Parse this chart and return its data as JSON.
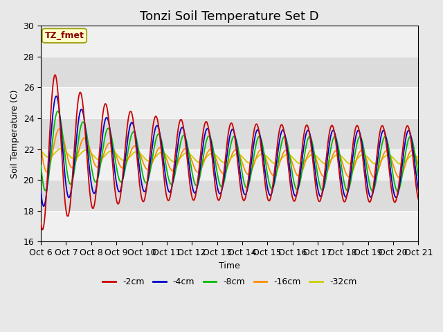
{
  "title": "Tonzi Soil Temperature Set D",
  "xlabel": "Time",
  "ylabel": "Soil Temperature (C)",
  "ylim": [
    16,
    30
  ],
  "xlim": [
    0,
    15
  ],
  "xtick_labels": [
    "Oct 6",
    "Oct 7",
    "Oct 8",
    "Oct 9",
    "Oct 10",
    "Oct 11",
    "Oct 12",
    "Oct 13",
    "Oct 14",
    "Oct 15",
    "Oct 16",
    "Oct 17",
    "Oct 18",
    "Oct 19",
    "Oct 20",
    "Oct 21"
  ],
  "series_colors": [
    "#cc0000",
    "#0000cc",
    "#00bb00",
    "#ff8c00",
    "#cccc00"
  ],
  "series_names": [
    "-2cm",
    "-4cm",
    "-8cm",
    "-16cm",
    "-32cm"
  ],
  "plot_bg_color": "#e8e8e8",
  "band_color_light": "#f0f0f0",
  "band_color_dark": "#dcdcdc",
  "annotation_text": "TZ_fmet",
  "annotation_color": "#8b0000",
  "annotation_bg": "#ffffcc",
  "annotation_edge": "#999900",
  "title_fontsize": 13,
  "axis_fontsize": 9,
  "legend_fontsize": 9
}
